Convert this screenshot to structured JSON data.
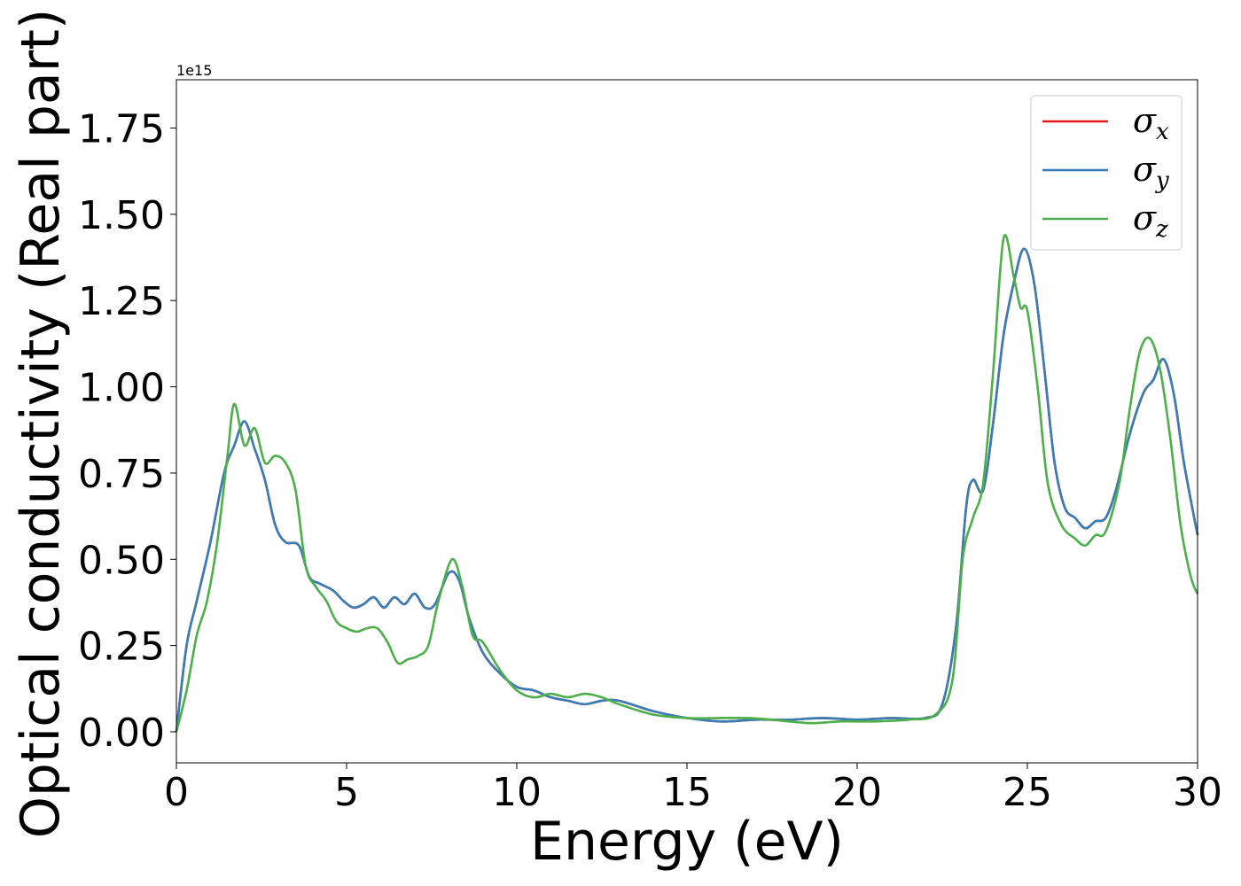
{
  "chart_data": {
    "type": "line",
    "xlabel": "Energy (eV)",
    "ylabel": "Optical conductivity (Real part)",
    "y_offset_label": "1e15",
    "y_scale": 1000000000000000.0,
    "xlim": [
      0,
      30
    ],
    "ylim": [
      -0.09,
      1.89
    ],
    "xticks": [
      0,
      5,
      10,
      15,
      20,
      25,
      30
    ],
    "xtick_labels": [
      "0",
      "5",
      "10",
      "15",
      "20",
      "25",
      "30"
    ],
    "yticks": [
      0.0,
      0.25,
      0.5,
      0.75,
      1.0,
      1.25,
      1.5,
      1.75
    ],
    "ytick_labels": [
      "0.00",
      "0.25",
      "0.50",
      "0.75",
      "1.00",
      "1.25",
      "1.50",
      "1.75"
    ],
    "grid": false,
    "legend_position": "top-right",
    "series": [
      {
        "name": "σx",
        "symbol": "σ",
        "subscript": "x",
        "color": "#e41a1c",
        "x": [
          0,
          0.3,
          0.6,
          1.0,
          1.4,
          1.7,
          2.0,
          2.3,
          2.6,
          2.9,
          3.2,
          3.6,
          3.9,
          4.2,
          4.6,
          4.9,
          5.2,
          5.5,
          5.8,
          6.1,
          6.4,
          6.7,
          7.0,
          7.3,
          7.6,
          8.0,
          8.3,
          8.6,
          9.0,
          9.5,
          10.0,
          10.5,
          11.0,
          11.5,
          12.0,
          12.5,
          13.0,
          14.0,
          15.0,
          16.0,
          17.0,
          18.0,
          19.0,
          20.0,
          21.0,
          22.0,
          22.5,
          22.9,
          23.2,
          23.4,
          23.7,
          24.0,
          24.3,
          24.6,
          24.9,
          25.2,
          25.5,
          25.8,
          26.1,
          26.4,
          26.7,
          27.0,
          27.3,
          27.6,
          28.0,
          28.4,
          28.7,
          29.0,
          29.3,
          29.6,
          30.0
        ],
        "y": [
          0.0,
          0.25,
          0.38,
          0.55,
          0.75,
          0.83,
          0.9,
          0.82,
          0.73,
          0.6,
          0.55,
          0.54,
          0.45,
          0.43,
          0.41,
          0.38,
          0.36,
          0.37,
          0.39,
          0.36,
          0.39,
          0.37,
          0.4,
          0.36,
          0.37,
          0.46,
          0.44,
          0.33,
          0.23,
          0.17,
          0.13,
          0.12,
          0.1,
          0.09,
          0.08,
          0.09,
          0.09,
          0.06,
          0.04,
          0.03,
          0.035,
          0.035,
          0.04,
          0.035,
          0.04,
          0.04,
          0.08,
          0.3,
          0.65,
          0.73,
          0.7,
          0.9,
          1.15,
          1.3,
          1.4,
          1.3,
          1.05,
          0.78,
          0.65,
          0.62,
          0.59,
          0.61,
          0.62,
          0.7,
          0.86,
          0.98,
          1.02,
          1.08,
          0.98,
          0.78,
          0.57
        ]
      },
      {
        "name": "σy",
        "symbol": "σ",
        "subscript": "y",
        "color": "#377eb8",
        "x": [
          0,
          0.3,
          0.6,
          1.0,
          1.4,
          1.7,
          2.0,
          2.3,
          2.6,
          2.9,
          3.2,
          3.6,
          3.9,
          4.2,
          4.6,
          4.9,
          5.2,
          5.5,
          5.8,
          6.1,
          6.4,
          6.7,
          7.0,
          7.3,
          7.6,
          8.0,
          8.3,
          8.6,
          9.0,
          9.5,
          10.0,
          10.5,
          11.0,
          11.5,
          12.0,
          12.5,
          13.0,
          14.0,
          15.0,
          16.0,
          17.0,
          18.0,
          19.0,
          20.0,
          21.0,
          22.0,
          22.5,
          22.9,
          23.2,
          23.4,
          23.7,
          24.0,
          24.3,
          24.6,
          24.9,
          25.2,
          25.5,
          25.8,
          26.1,
          26.4,
          26.7,
          27.0,
          27.3,
          27.6,
          28.0,
          28.4,
          28.7,
          29.0,
          29.3,
          29.6,
          30.0
        ],
        "y": [
          0.0,
          0.25,
          0.38,
          0.55,
          0.75,
          0.83,
          0.9,
          0.82,
          0.73,
          0.6,
          0.55,
          0.54,
          0.45,
          0.43,
          0.41,
          0.38,
          0.36,
          0.37,
          0.39,
          0.36,
          0.39,
          0.37,
          0.4,
          0.36,
          0.37,
          0.46,
          0.44,
          0.33,
          0.23,
          0.17,
          0.13,
          0.12,
          0.1,
          0.09,
          0.08,
          0.09,
          0.09,
          0.06,
          0.04,
          0.03,
          0.035,
          0.035,
          0.04,
          0.035,
          0.04,
          0.04,
          0.08,
          0.3,
          0.65,
          0.73,
          0.7,
          0.9,
          1.15,
          1.3,
          1.4,
          1.3,
          1.05,
          0.78,
          0.65,
          0.62,
          0.59,
          0.61,
          0.62,
          0.7,
          0.86,
          0.98,
          1.02,
          1.08,
          0.98,
          0.78,
          0.57
        ]
      },
      {
        "name": "σz",
        "symbol": "σ",
        "subscript": "z",
        "color": "#4daf4a",
        "x": [
          0,
          0.3,
          0.6,
          0.9,
          1.2,
          1.5,
          1.7,
          2.0,
          2.3,
          2.6,
          2.9,
          3.2,
          3.5,
          3.8,
          4.1,
          4.4,
          4.7,
          5.0,
          5.3,
          5.6,
          5.9,
          6.2,
          6.5,
          6.8,
          7.1,
          7.4,
          7.7,
          8.1,
          8.4,
          8.7,
          9.0,
          9.5,
          10.0,
          10.5,
          11.0,
          11.5,
          12.0,
          12.5,
          13.0,
          14.0,
          15.0,
          16.0,
          16.8,
          17.5,
          18.0,
          18.7,
          19.5,
          20.5,
          21.5,
          22.3,
          22.8,
          23.1,
          23.4,
          23.7,
          24.0,
          24.3,
          24.6,
          24.8,
          25.0,
          25.3,
          25.6,
          26.0,
          26.4,
          26.7,
          27.0,
          27.3,
          27.7,
          28.0,
          28.3,
          28.6,
          28.9,
          29.2,
          29.5,
          29.8,
          30.0
        ],
        "y": [
          0.0,
          0.12,
          0.28,
          0.38,
          0.55,
          0.8,
          0.95,
          0.83,
          0.88,
          0.78,
          0.8,
          0.78,
          0.7,
          0.48,
          0.42,
          0.38,
          0.32,
          0.3,
          0.29,
          0.3,
          0.3,
          0.26,
          0.2,
          0.21,
          0.22,
          0.25,
          0.38,
          0.5,
          0.42,
          0.28,
          0.26,
          0.18,
          0.12,
          0.1,
          0.11,
          0.1,
          0.11,
          0.1,
          0.08,
          0.05,
          0.04,
          0.04,
          0.04,
          0.035,
          0.03,
          0.025,
          0.03,
          0.03,
          0.035,
          0.05,
          0.15,
          0.5,
          0.62,
          0.72,
          1.05,
          1.43,
          1.32,
          1.23,
          1.22,
          1.0,
          0.72,
          0.6,
          0.56,
          0.54,
          0.57,
          0.58,
          0.72,
          0.93,
          1.1,
          1.14,
          1.05,
          0.85,
          0.6,
          0.45,
          0.4
        ]
      }
    ]
  }
}
